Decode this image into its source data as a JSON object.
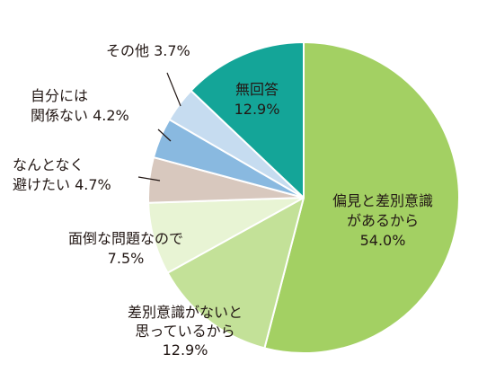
{
  "chart_data": {
    "type": "pie",
    "start_angle_deg": 0,
    "direction": "clockwise",
    "slices": [
      {
        "label_lines": [
          "偏見と差別意識",
          "があるから",
          "54.0%"
        ],
        "value": 54.0,
        "color": "#a3d063",
        "label_color": "#231815"
      },
      {
        "label_lines": [
          "差別意識がないと",
          "思っているから",
          "12.9%"
        ],
        "value": 12.9,
        "color": "#c3e198",
        "label_color": "#231815"
      },
      {
        "label_lines": [
          "面倒な問題なので",
          "7.5%"
        ],
        "value": 7.5,
        "color": "#e8f4d4",
        "label_color": "#231815"
      },
      {
        "label_lines": [
          "なんとなく",
          "避けたい 4.7%"
        ],
        "value": 4.7,
        "color": "#d8c8be",
        "label_color": "#231815"
      },
      {
        "label_lines": [
          "自分には",
          "関係ない 4.2%"
        ],
        "value": 4.2,
        "color": "#89b9e0",
        "label_color": "#231815"
      },
      {
        "label_lines": [
          "その他 3.7%"
        ],
        "value": 3.7,
        "color": "#c6dcf0",
        "label_color": "#231815"
      },
      {
        "label_lines": [
          "無回答",
          "12.9%"
        ],
        "value": 12.9,
        "color": "#14a598",
        "label_color": "#ffffff"
      }
    ]
  }
}
